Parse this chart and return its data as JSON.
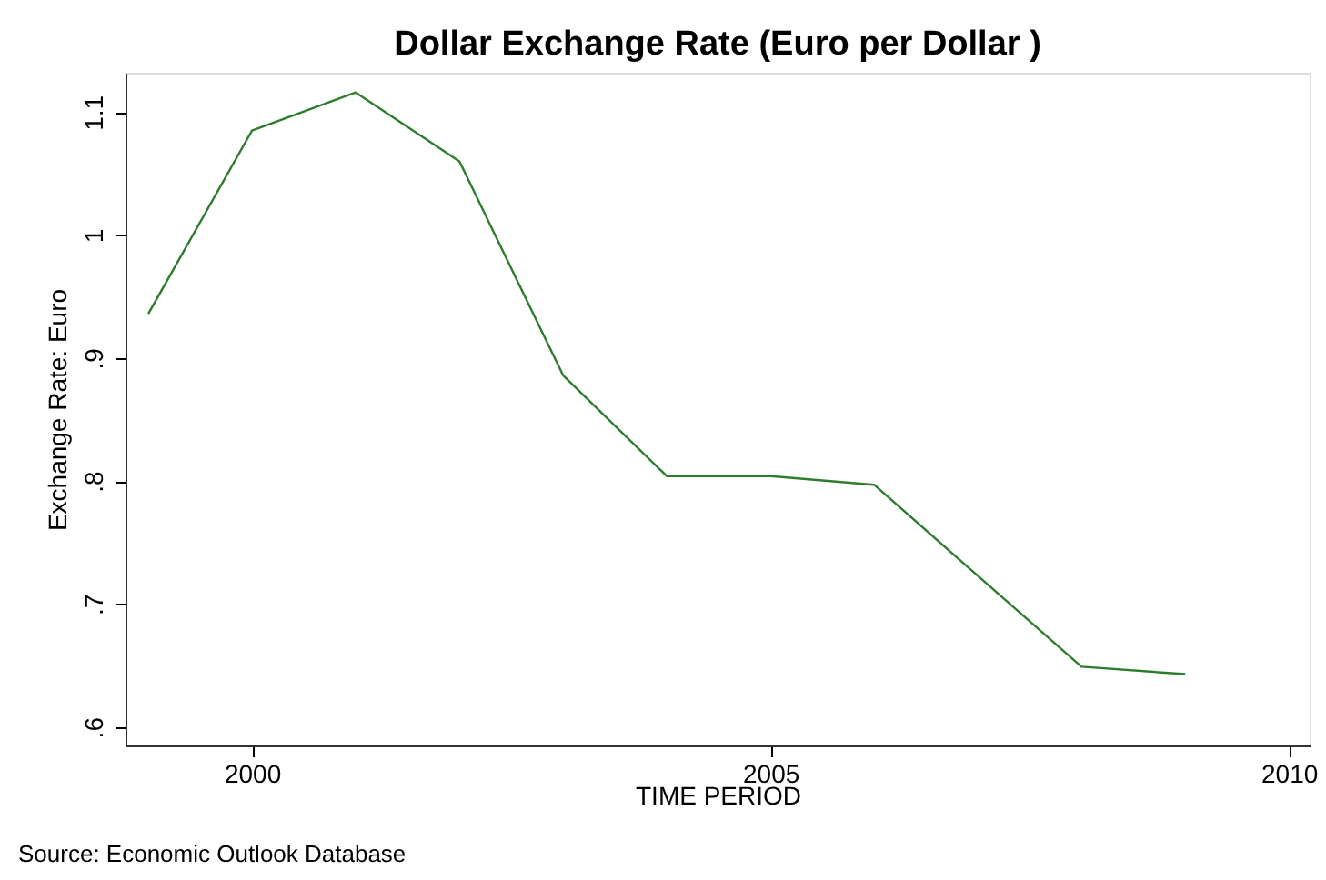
{
  "chart_data": {
    "type": "line",
    "title": "Dollar Exchange Rate (Euro per Dollar )",
    "xlabel": "TIME PERIOD",
    "ylabel": "Exchange Rate: Euro",
    "x": [
      1999,
      2000,
      2001,
      2002,
      2003,
      2004,
      2005,
      2006,
      2007,
      2008,
      2009
    ],
    "series": [
      {
        "color": "#2e7d2e",
        "values": [
          0.936,
          1.085,
          1.116,
          1.06,
          0.886,
          0.804,
          0.804,
          0.797,
          0.723,
          0.649,
          0.643
        ]
      }
    ],
    "xlim": [
      1998.78,
      2010.2
    ],
    "ylim": [
      0.585,
      1.132
    ],
    "xticks": [
      2000,
      2005,
      2010
    ],
    "yticks": [
      {
        "value": 0.6,
        "label": ".6"
      },
      {
        "value": 0.7,
        "label": ".7"
      },
      {
        "value": 0.8,
        "label": ".8"
      },
      {
        "value": 0.9,
        "label": ".9"
      },
      {
        "value": 1,
        "label": "1"
      },
      {
        "value": 1.1,
        "label": "1.1"
      }
    ],
    "grid": false,
    "marker": "none",
    "line_style": "solid",
    "annotations": [
      "Source: Economic Outlook Database"
    ]
  }
}
